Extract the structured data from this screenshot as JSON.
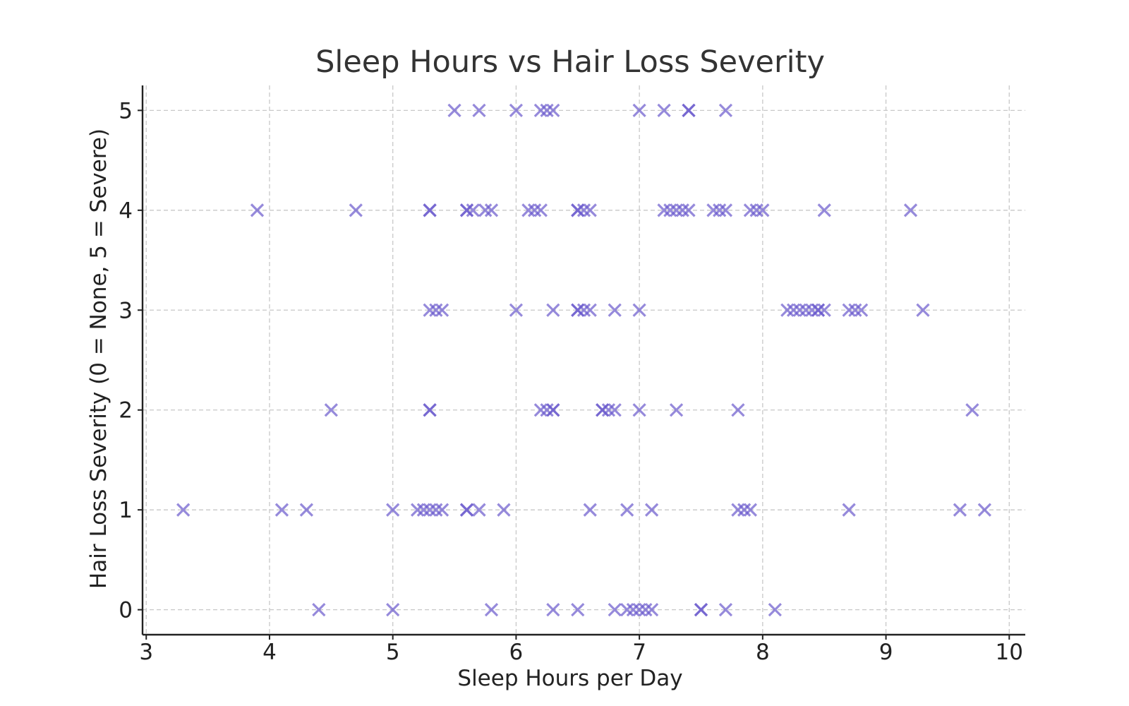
{
  "chart_data": {
    "type": "scatter",
    "title": "Sleep Hours vs Hair Loss Severity",
    "xlabel": "Sleep Hours per Day",
    "ylabel": "Hair Loss Severity (0 = None, 5 = Severe)",
    "xlim": [
      2.97,
      10.13
    ],
    "ylim": [
      -0.25,
      5.25
    ],
    "xticks": [
      3,
      4,
      5,
      6,
      7,
      8,
      9,
      10
    ],
    "yticks": [
      0,
      1,
      2,
      3,
      4,
      5
    ],
    "grid": true,
    "marker": "x",
    "color": "#6a5acd",
    "opacity": 0.7,
    "series": [
      {
        "points": [
          [
            5.5,
            5
          ],
          [
            5.7,
            5
          ],
          [
            6.0,
            5
          ],
          [
            6.2,
            5
          ],
          [
            6.25,
            5
          ],
          [
            6.3,
            5
          ],
          [
            7.0,
            5
          ],
          [
            7.2,
            5
          ],
          [
            7.4,
            5
          ],
          [
            7.4,
            5
          ],
          [
            7.7,
            5
          ],
          [
            3.9,
            4
          ],
          [
            4.7,
            4
          ],
          [
            5.3,
            4
          ],
          [
            5.3,
            4
          ],
          [
            5.6,
            4
          ],
          [
            5.6,
            4
          ],
          [
            5.65,
            4
          ],
          [
            5.75,
            4
          ],
          [
            5.8,
            4
          ],
          [
            6.1,
            4
          ],
          [
            6.15,
            4
          ],
          [
            6.2,
            4
          ],
          [
            6.5,
            4
          ],
          [
            6.5,
            4
          ],
          [
            6.55,
            4
          ],
          [
            6.6,
            4
          ],
          [
            7.2,
            4
          ],
          [
            7.25,
            4
          ],
          [
            7.3,
            4
          ],
          [
            7.35,
            4
          ],
          [
            7.4,
            4
          ],
          [
            7.6,
            4
          ],
          [
            7.65,
            4
          ],
          [
            7.7,
            4
          ],
          [
            7.9,
            4
          ],
          [
            7.95,
            4
          ],
          [
            8.0,
            4
          ],
          [
            8.5,
            4
          ],
          [
            9.2,
            4
          ],
          [
            5.3,
            3
          ],
          [
            5.35,
            3
          ],
          [
            5.4,
            3
          ],
          [
            6.0,
            3
          ],
          [
            6.3,
            3
          ],
          [
            6.5,
            3
          ],
          [
            6.5,
            3
          ],
          [
            6.55,
            3
          ],
          [
            6.6,
            3
          ],
          [
            6.8,
            3
          ],
          [
            7.0,
            3
          ],
          [
            8.2,
            3
          ],
          [
            8.25,
            3
          ],
          [
            8.3,
            3
          ],
          [
            8.35,
            3
          ],
          [
            8.4,
            3
          ],
          [
            8.45,
            3
          ],
          [
            8.45,
            3
          ],
          [
            8.5,
            3
          ],
          [
            8.7,
            3
          ],
          [
            8.75,
            3
          ],
          [
            8.8,
            3
          ],
          [
            9.3,
            3
          ],
          [
            4.5,
            2
          ],
          [
            5.3,
            2
          ],
          [
            5.3,
            2
          ],
          [
            6.2,
            2
          ],
          [
            6.25,
            2
          ],
          [
            6.3,
            2
          ],
          [
            6.3,
            2
          ],
          [
            6.7,
            2
          ],
          [
            6.7,
            2
          ],
          [
            6.75,
            2
          ],
          [
            6.8,
            2
          ],
          [
            7.0,
            2
          ],
          [
            7.3,
            2
          ],
          [
            7.8,
            2
          ],
          [
            9.7,
            2
          ],
          [
            3.3,
            1
          ],
          [
            4.1,
            1
          ],
          [
            4.3,
            1
          ],
          [
            5.0,
            1
          ],
          [
            5.2,
            1
          ],
          [
            5.25,
            1
          ],
          [
            5.3,
            1
          ],
          [
            5.35,
            1
          ],
          [
            5.4,
            1
          ],
          [
            5.6,
            1
          ],
          [
            5.6,
            1
          ],
          [
            5.7,
            1
          ],
          [
            5.9,
            1
          ],
          [
            6.6,
            1
          ],
          [
            6.9,
            1
          ],
          [
            7.1,
            1
          ],
          [
            7.8,
            1
          ],
          [
            7.85,
            1
          ],
          [
            7.9,
            1
          ],
          [
            8.7,
            1
          ],
          [
            9.6,
            1
          ],
          [
            9.8,
            1
          ],
          [
            4.4,
            0
          ],
          [
            5.0,
            0
          ],
          [
            5.8,
            0
          ],
          [
            6.3,
            0
          ],
          [
            6.5,
            0
          ],
          [
            6.8,
            0
          ],
          [
            6.9,
            0
          ],
          [
            6.95,
            0
          ],
          [
            7.0,
            0
          ],
          [
            7.05,
            0
          ],
          [
            7.1,
            0
          ],
          [
            7.5,
            0
          ],
          [
            7.5,
            0
          ],
          [
            7.7,
            0
          ],
          [
            8.1,
            0
          ]
        ]
      }
    ]
  }
}
